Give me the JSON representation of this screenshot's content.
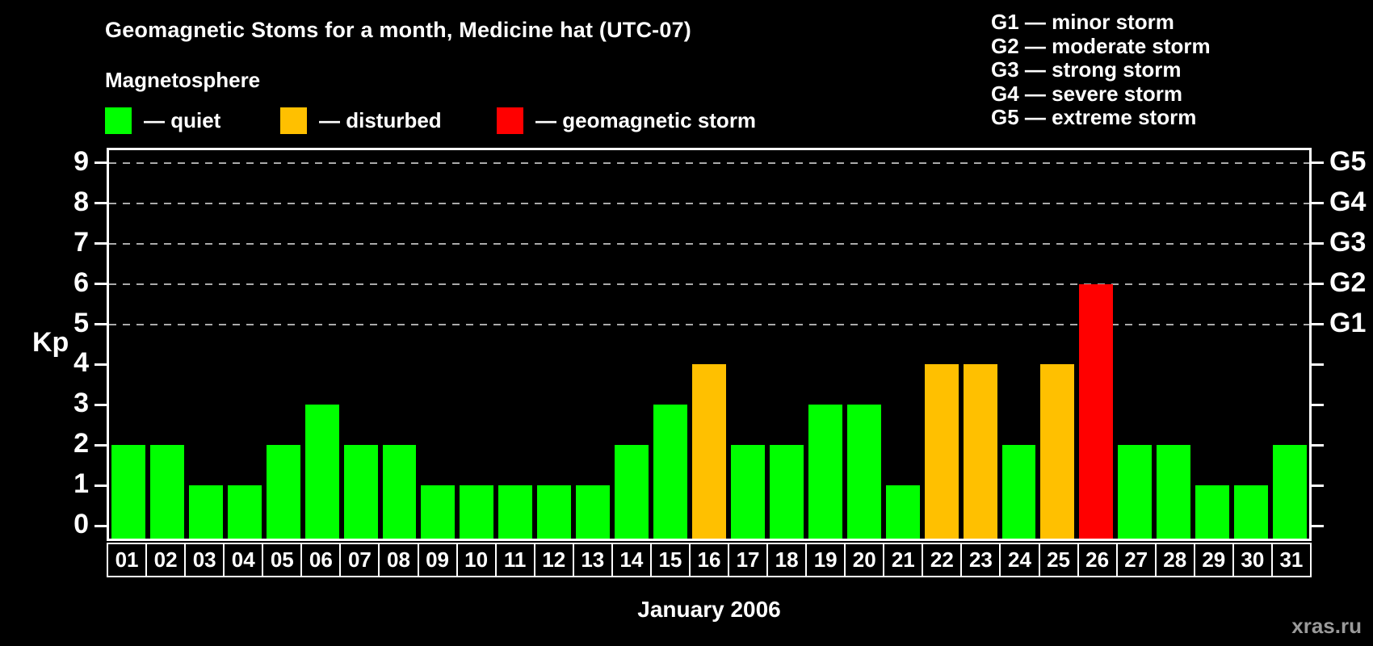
{
  "title": "Geomagnetic Stoms for a month, Medicine hat (UTC-07)",
  "legend": {
    "heading": "Magnetosphere",
    "items": [
      {
        "key": "quiet",
        "label": "— quiet",
        "color": "#00ff00"
      },
      {
        "key": "disturbed",
        "label": "— disturbed",
        "color": "#ffc000"
      },
      {
        "key": "storm",
        "label": "— geomagnetic storm",
        "color": "#ff0000"
      }
    ]
  },
  "g_scale_legend": [
    "G1 — minor storm",
    "G2 — moderate storm",
    "G3 — strong storm",
    "G4 — severe storm",
    "G5 — extreme storm"
  ],
  "watermark": "xras.ru",
  "chart_data": {
    "type": "bar",
    "title": "Geomagnetic Stoms for a month, Medicine hat (UTC-07)",
    "subtitle": "Magnetosphere",
    "xlabel": "January 2006",
    "ylabel": "Kp",
    "ylim": [
      0,
      9
    ],
    "y_ticks": [
      0,
      1,
      2,
      3,
      4,
      5,
      6,
      7,
      8,
      9
    ],
    "gridlines_at": [
      5,
      6,
      7,
      8,
      9
    ],
    "grid": "dashed horizontal at storm levels only",
    "legend_position": "top",
    "right_axis_labels": [
      {
        "kp": 5,
        "label": "G1"
      },
      {
        "kp": 6,
        "label": "G2"
      },
      {
        "kp": 7,
        "label": "G3"
      },
      {
        "kp": 8,
        "label": "G4"
      },
      {
        "kp": 9,
        "label": "G5"
      }
    ],
    "categories": [
      "01",
      "02",
      "03",
      "04",
      "05",
      "06",
      "07",
      "08",
      "09",
      "10",
      "11",
      "12",
      "13",
      "14",
      "15",
      "16",
      "17",
      "18",
      "19",
      "20",
      "21",
      "22",
      "23",
      "24",
      "25",
      "26",
      "27",
      "28",
      "29",
      "30",
      "31"
    ],
    "values": [
      2,
      2,
      1,
      1,
      2,
      3,
      2,
      2,
      1,
      1,
      1,
      1,
      1,
      2,
      3,
      4,
      2,
      2,
      3,
      3,
      1,
      4,
      4,
      2,
      4,
      6,
      2,
      2,
      1,
      1,
      2
    ],
    "statuses": [
      "quiet",
      "quiet",
      "quiet",
      "quiet",
      "quiet",
      "quiet",
      "quiet",
      "quiet",
      "quiet",
      "quiet",
      "quiet",
      "quiet",
      "quiet",
      "quiet",
      "quiet",
      "disturbed",
      "quiet",
      "quiet",
      "quiet",
      "quiet",
      "quiet",
      "disturbed",
      "disturbed",
      "quiet",
      "disturbed",
      "storm",
      "quiet",
      "quiet",
      "quiet",
      "quiet",
      "quiet"
    ],
    "status_colors": {
      "quiet": "#00ff00",
      "disturbed": "#ffc000",
      "storm": "#ff0000"
    }
  }
}
